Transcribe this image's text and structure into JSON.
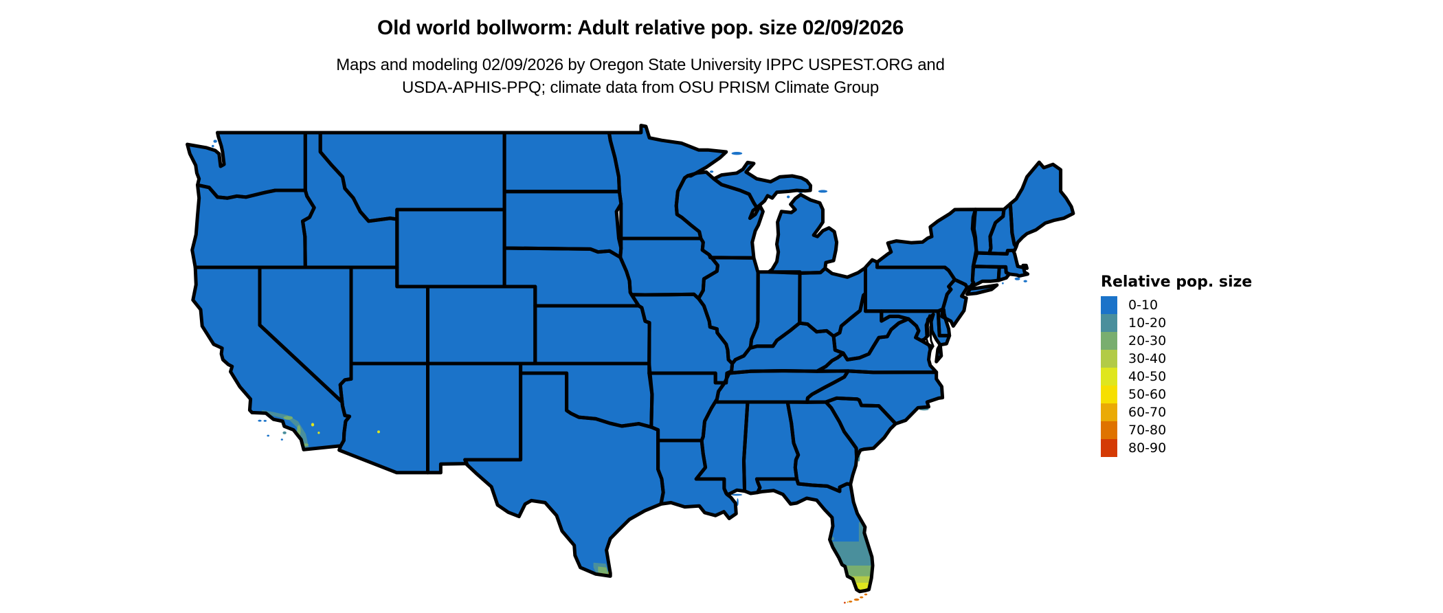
{
  "header": {
    "title": "Old world bollworm: Adult relative pop. size 02/09/2026",
    "subtitle_line1": "Maps and modeling 02/09/2026 by Oregon State University IPPC USPEST.ORG and",
    "subtitle_line2": "USDA-APHIS-PPQ; climate data from OSU PRISM Climate Group"
  },
  "legend": {
    "title": "Relative pop. size",
    "items": [
      {
        "label": "0-10",
        "color": "#1B73C9"
      },
      {
        "label": "10-20",
        "color": "#4A8F9C"
      },
      {
        "label": "20-30",
        "color": "#79AE6F"
      },
      {
        "label": "30-40",
        "color": "#B2CB47"
      },
      {
        "label": "40-50",
        "color": "#DFE61E"
      },
      {
        "label": "50-60",
        "color": "#F6DF00"
      },
      {
        "label": "60-70",
        "color": "#EAAA05"
      },
      {
        "label": "70-80",
        "color": "#DF7300"
      },
      {
        "label": "80-90",
        "color": "#D43A05"
      }
    ]
  },
  "map": {
    "land_color": "#1B73C9",
    "border_color": "#000000",
    "water_color": "#FFFFFF"
  }
}
